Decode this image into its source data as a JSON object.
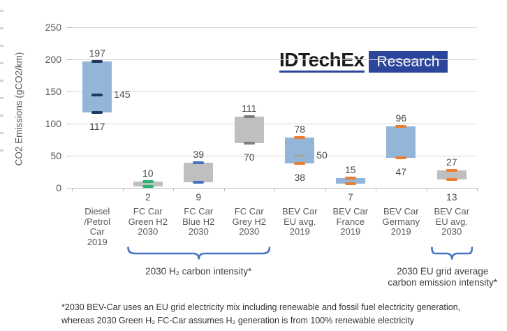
{
  "logo": {
    "brand": "IDTechEx",
    "suffix": "Research",
    "accent_color": "#2B459B"
  },
  "chart_data": {
    "type": "bar",
    "subtype": "floating-range-bars",
    "title": "",
    "xlabel": "",
    "ylabel": "CO2 Emissions (gCO2/km)",
    "ylim": [
      0,
      250
    ],
    "yticks": [
      0,
      50,
      100,
      150,
      200,
      250
    ],
    "grid": true,
    "legend_position": "none",
    "categories": [
      "Diesel /Petrol Car 2019",
      "FC Car Green H2 2030",
      "FC Car Blue H2 2030",
      "FC Car Grey H2 2030",
      "BEV Car EU avg. 2019",
      "BEV Car France 2019",
      "BEV Car Germany 2019",
      "BEV Car EU avg. 2030"
    ],
    "category_lines": [
      [
        "Diesel",
        "/Petrol",
        "Car",
        "2019"
      ],
      [
        "FC Car",
        "Green H2",
        "2030"
      ],
      [
        "FC Car",
        "Blue H2",
        "2030"
      ],
      [
        "FC Car",
        "Grey H2",
        "2030"
      ],
      [
        "BEV Car",
        "EU avg.",
        "2019"
      ],
      [
        "BEV Car",
        "France",
        "2019"
      ],
      [
        "BEV Car",
        "Germany",
        "2019"
      ],
      [
        "BEV Car",
        "EU avg.",
        "2030"
      ]
    ],
    "bars": [
      {
        "category": "Diesel /Petrol Car 2019",
        "min": 117,
        "max": 197,
        "mid": 145,
        "bar_color": "#92B5D8",
        "marker_color": "#1F3864",
        "mid_marker_color": "#1F3864",
        "min_label_pos": "below-bar",
        "mid_label_pos": "right"
      },
      {
        "category": "FC Car Green H2 2030",
        "min": 2,
        "max": 10,
        "bar_color": "#BFBFBF",
        "marker_color": "#2FB270",
        "min_label_pos": "below-axis"
      },
      {
        "category": "FC Car Blue H2 2030",
        "min": 9,
        "max": 39,
        "bar_color": "#BFBFBF",
        "marker_color": "#4472C4",
        "min_label_pos": "below-axis"
      },
      {
        "category": "FC Car Grey H2 2030",
        "min": 70,
        "max": 111,
        "bar_color": "#BFBFBF",
        "marker_color": "#7F7F7F",
        "min_label_pos": "below-bar"
      },
      {
        "category": "BEV Car EU avg. 2019",
        "min": 38,
        "max": 78,
        "mid": 50,
        "bar_color": "#92B5D8",
        "marker_color": "#ED7D31",
        "mid_marker_color": "#A6A6A6",
        "min_label_pos": "below-bar",
        "mid_label_pos": "right"
      },
      {
        "category": "BEV Car France 2019",
        "min": 7,
        "max": 15,
        "bar_color": "#92B5D8",
        "marker_color": "#ED7D31",
        "min_label_pos": "below-axis"
      },
      {
        "category": "BEV Car Germany 2019",
        "min": 47,
        "max": 96,
        "bar_color": "#92B5D8",
        "marker_color": "#ED7D31",
        "min_label_pos": "below-bar"
      },
      {
        "category": "BEV Car EU avg. 2030",
        "min": 13,
        "max": 27,
        "bar_color": "#BFBFBF",
        "marker_color": "#ED7D31",
        "min_label_pos": "below-axis"
      }
    ],
    "annotations": [
      {
        "lines": [
          "2030 H₂ carbon intensity*"
        ],
        "span_categories": [
          1,
          3
        ],
        "brace_color": "#4472C4",
        "text_center_x_offset": 0
      },
      {
        "lines": [
          "2030 EU grid average",
          "carbon emission intensity*"
        ],
        "span_categories": [
          7,
          7
        ],
        "brace_color": "#4472C4",
        "text_center_x_offset": -13
      }
    ]
  },
  "footnote": {
    "line1": "*2030 BEV-Car uses an EU grid electricity mix including renewable and fossil fuel electricity generation,",
    "line2": "whereas 2030 Green H₂ FC-Car assumes H₂ generation is from 100% renewable electricity"
  },
  "colors": {
    "grid": "#D9D9D9",
    "axis": "#BFBFBF",
    "tick_label": "#595959",
    "value_label": "#4a4a4a",
    "category_label": "#595959",
    "annotation_text": "#404040"
  }
}
